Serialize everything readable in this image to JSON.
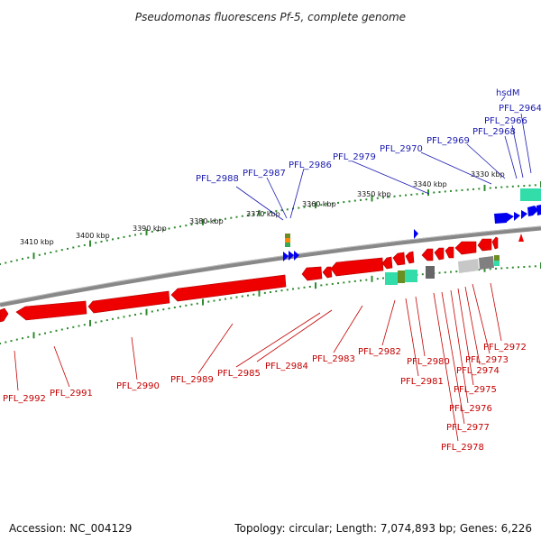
{
  "title": "Pseudomonas fluorescens Pf-5, complete genome",
  "footer": {
    "accession": "Accession: NC_004129",
    "summary": "Topology: circular; Length: 7,074,893 bp; Genes: 6,226"
  },
  "colors": {
    "forward": "#0000ee",
    "reverse": "#ee0000",
    "forward_label": "#1a1ab0",
    "reverse_label": "#c40000",
    "backbone": "#8c8c8c",
    "tick_dot": "#2e8b2e",
    "annotation_teal": "#33ddaa",
    "annotation_gray": "#a8a8a8"
  },
  "scale_ticks": [
    "3330 kbp",
    "3340 kbp",
    "3350 kbp",
    "3360 kbp",
    "3370 kbp",
    "3380 kbp",
    "3390 kbp",
    "3400 kbp",
    "3410 kbp"
  ],
  "forward_labels": [
    "hsdM",
    "PFL_2964",
    "PFL_2966",
    "PFL_2968",
    "PFL_2969",
    "PFL_2970",
    "PFL_2979",
    "PFL_2986",
    "PFL_2987",
    "PFL_2988"
  ],
  "reverse_labels": [
    "PFL_2972",
    "PFL_2973",
    "PFL_2974",
    "PFL_2975",
    "PFL_2976",
    "PFL_2977",
    "PFL_2978",
    "PFL_2980",
    "PFL_2981",
    "PFL_2982",
    "PFL_2983",
    "PFL_2984",
    "PFL_2985",
    "PFL_2989",
    "PFL_2990",
    "PFL_2991",
    "PFL_2992"
  ]
}
